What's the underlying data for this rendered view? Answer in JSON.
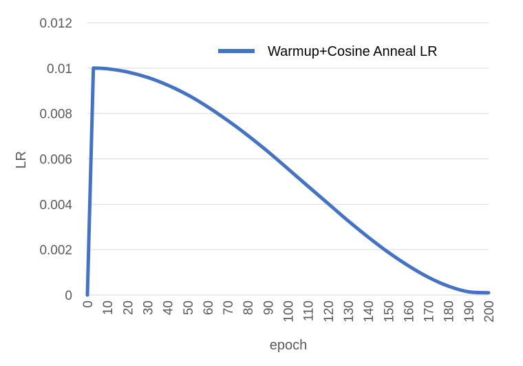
{
  "chart_data": {
    "type": "line",
    "xlabel": "epoch",
    "ylabel": "LR",
    "xlim": [
      0,
      200
    ],
    "ylim": [
      0,
      0.012
    ],
    "x_ticks": [
      "0",
      "10",
      "20",
      "30",
      "40",
      "50",
      "60",
      "70",
      "80",
      "90",
      "100",
      "110",
      "120",
      "130",
      "140",
      "150",
      "160",
      "170",
      "180",
      "190",
      "200"
    ],
    "y_ticks": [
      "0",
      "0.002",
      "0.004",
      "0.006",
      "0.008",
      "0.01",
      "0.012"
    ],
    "grid": true,
    "legend_position": "top-right",
    "colors": {
      "series": "#4472c4",
      "grid": "#d9d9d9",
      "text": "#595959"
    },
    "series": [
      {
        "name": "Warmup+Cosine Anneal LR",
        "x": [
          0,
          3,
          10,
          20,
          30,
          40,
          50,
          60,
          70,
          80,
          90,
          100,
          110,
          120,
          130,
          140,
          150,
          160,
          170,
          180,
          190,
          200
        ],
        "y": [
          0,
          0.01,
          0.00997,
          0.00983,
          0.00959,
          0.00925,
          0.00882,
          0.00829,
          0.00769,
          0.00703,
          0.00632,
          0.00556,
          0.00479,
          0.00403,
          0.00327,
          0.00255,
          0.00188,
          0.00129,
          0.00078,
          0.00039,
          0.00014,
          0.0001
        ]
      }
    ]
  }
}
